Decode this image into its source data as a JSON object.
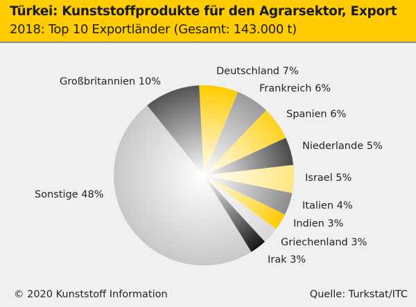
{
  "header": {
    "title": "Türkei: Kunststoffprodukte für den Agrarsektor, Export",
    "subtitle": "2018: Top 10 Exportländer (Gesamt: 143.000 t)"
  },
  "footer": {
    "copyright": "© 2020 Kunststoff Information",
    "source": "Quelle: Turkstat/ITC"
  },
  "chart_data": {
    "type": "pie",
    "title": "Türkei: Kunststoffprodukte für den Agrarsektor, Export",
    "subtitle": "2018: Top 10 Exportländer (Gesamt: 143.000 t)",
    "unit": "%",
    "slices": [
      {
        "label": "Deutschland 7%",
        "name": "Deutschland",
        "value": 7,
        "color": "#ffcc00"
      },
      {
        "label": "Frankreich 6%",
        "name": "Frankreich",
        "value": 6,
        "color": "#9a9a9a"
      },
      {
        "label": "Spanien 6%",
        "name": "Spanien",
        "value": 6,
        "color": "#ffd21f"
      },
      {
        "label": "Niederlande 5%",
        "name": "Niederlande",
        "value": 5,
        "color": "#4a4a4a"
      },
      {
        "label": "Israel 5%",
        "name": "Israel",
        "value": 5,
        "color": "#ffe680"
      },
      {
        "label": "Italien 4%",
        "name": "Italien",
        "value": 4,
        "color": "#8c8c8c"
      },
      {
        "label": "Indien 3%",
        "name": "Indien",
        "value": 3,
        "color": "#ffcc00"
      },
      {
        "label": "Griechenland 3%",
        "name": "Griechenland",
        "value": 3,
        "color": "#d8d8d8"
      },
      {
        "label": "Irak 3%",
        "name": "Irak",
        "value": 3,
        "color": "#151515"
      },
      {
        "label": "Sonstige 48%",
        "name": "Sonstige",
        "value": 48,
        "color": "#c8c8c8"
      },
      {
        "label": "Großbritannien 10%",
        "name": "Großbritannien",
        "value": 10,
        "color": "#555555"
      }
    ]
  }
}
